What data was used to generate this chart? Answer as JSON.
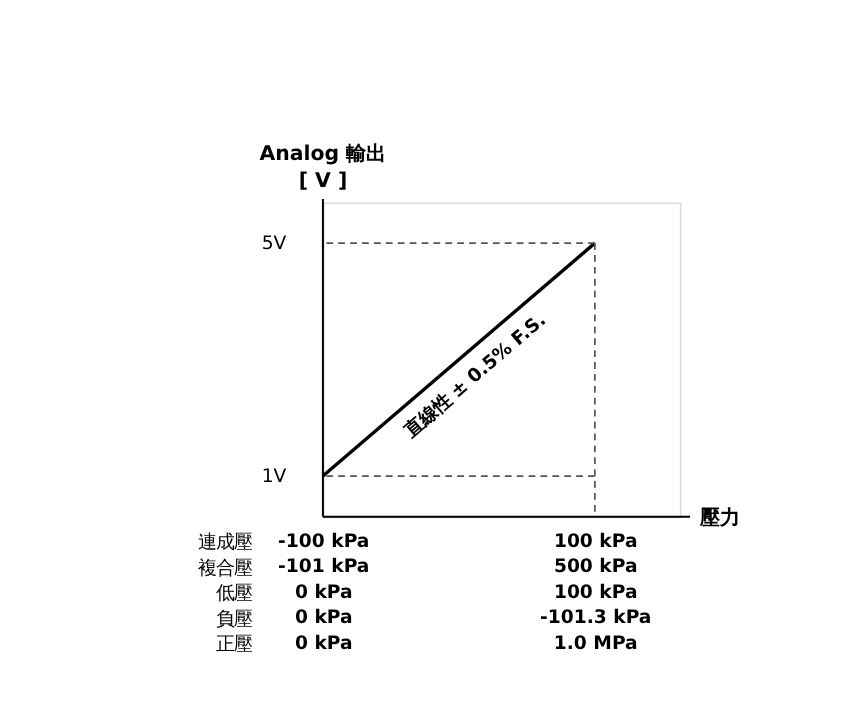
{
  "chart_data": {
    "type": "line",
    "ylabel": "Analog 輸出\n[ V ]",
    "xlabel": "壓力",
    "categories": [
      "-100 kPa\n-101 kPa\n0 kPa\n0 kPa\n0 kPa",
      "100 kPa\n500 kPa\n100 kPa\n-101.3 kPa\n1.0 MPa"
    ],
    "series": [
      {
        "color": "#000000",
        "values": [
          1,
          5
        ]
      }
    ],
    "ylim": [
      0.3,
      5.7
    ],
    "yticks": [
      {
        "value": 1,
        "label": "1V"
      },
      {
        "value": 5,
        "label": "5V"
      }
    ],
    "ref_lines": [
      {
        "axis": "y",
        "value": 1,
        "line_style": "dashed",
        "color": "#555555"
      },
      {
        "axis": "y",
        "value": 5,
        "line_style": "dashed",
        "color": "#555555"
      },
      {
        "axis": "x",
        "value": "100 kPa\n500 kPa\n100 kPa\n-101.3 kPa\n1.0 MPa",
        "line_style": "dashed",
        "color": "#555555"
      }
    ],
    "annotations": [
      "直線性 ± 0.5% F.S.",
      "連成壓",
      "複合壓",
      "低壓",
      "負壓",
      "正壓"
    ],
    "grid": false,
    "marker": "none",
    "line_style": "solid"
  }
}
